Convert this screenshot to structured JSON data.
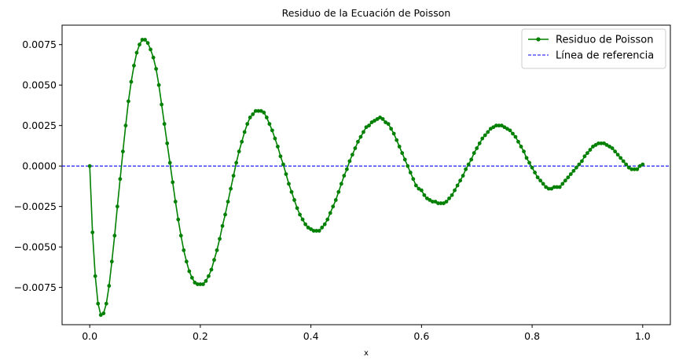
{
  "chart_data": {
    "type": "line",
    "title": "Residuo de la Ecuación de Poisson",
    "xlabel": "x",
    "ylabel": "",
    "xlim": [
      -0.05,
      1.05
    ],
    "ylim": [
      -0.0098,
      0.0087
    ],
    "x_ticks": [
      0.0,
      0.2,
      0.4,
      0.6,
      0.8,
      1.0
    ],
    "x_tick_labels": [
      "0.0",
      "0.2",
      "0.4",
      "0.6",
      "0.8",
      "1.0"
    ],
    "y_ticks": [
      -0.0075,
      -0.005,
      -0.0025,
      0.0,
      0.0025,
      0.005,
      0.0075
    ],
    "y_tick_labels": [
      "−0.0075",
      "−0.0050",
      "−0.0025",
      "0.0000",
      "0.0025",
      "0.0050",
      "0.0075"
    ],
    "grid": false,
    "legend_position": "top-right",
    "series": [
      {
        "name": "Residuo de Poisson",
        "color": "#008000",
        "style": "solid-with-dots",
        "points": [
          [
            0.0,
            0.0
          ],
          [
            0.005,
            -0.0041
          ],
          [
            0.01,
            -0.0068
          ],
          [
            0.015,
            -0.0085
          ],
          [
            0.02,
            -0.0092
          ],
          [
            0.025,
            -0.0091
          ],
          [
            0.03,
            -0.0085
          ],
          [
            0.035,
            -0.0074
          ],
          [
            0.04,
            -0.0059
          ],
          [
            0.045,
            -0.0043
          ],
          [
            0.05,
            -0.0025
          ],
          [
            0.055,
            -0.0008
          ],
          [
            0.06,
            0.0009
          ],
          [
            0.065,
            0.0025
          ],
          [
            0.07,
            0.004
          ],
          [
            0.075,
            0.0052
          ],
          [
            0.08,
            0.0062
          ],
          [
            0.085,
            0.007
          ],
          [
            0.09,
            0.0075
          ],
          [
            0.095,
            0.0078
          ],
          [
            0.1,
            0.0078
          ],
          [
            0.105,
            0.0076
          ],
          [
            0.11,
            0.0072
          ],
          [
            0.115,
            0.0067
          ],
          [
            0.12,
            0.006
          ],
          [
            0.125,
            0.005
          ],
          [
            0.13,
            0.0038
          ],
          [
            0.135,
            0.0026
          ],
          [
            0.14,
            0.0014
          ],
          [
            0.145,
            0.0002
          ],
          [
            0.15,
            -0.001
          ],
          [
            0.155,
            -0.0022
          ],
          [
            0.16,
            -0.0033
          ],
          [
            0.165,
            -0.0043
          ],
          [
            0.17,
            -0.0052
          ],
          [
            0.175,
            -0.0059
          ],
          [
            0.18,
            -0.0065
          ],
          [
            0.185,
            -0.0069
          ],
          [
            0.19,
            -0.0072
          ],
          [
            0.195,
            -0.0073
          ],
          [
            0.2,
            -0.0073
          ],
          [
            0.205,
            -0.0073
          ],
          [
            0.21,
            -0.0071
          ],
          [
            0.215,
            -0.0068
          ],
          [
            0.22,
            -0.0064
          ],
          [
            0.225,
            -0.0058
          ],
          [
            0.23,
            -0.0052
          ],
          [
            0.235,
            -0.0045
          ],
          [
            0.24,
            -0.0037
          ],
          [
            0.245,
            -0.003
          ],
          [
            0.25,
            -0.0022
          ],
          [
            0.255,
            -0.0014
          ],
          [
            0.26,
            -0.0006
          ],
          [
            0.265,
            0.0002
          ],
          [
            0.27,
            0.0009
          ],
          [
            0.275,
            0.0015
          ],
          [
            0.28,
            0.0021
          ],
          [
            0.285,
            0.0026
          ],
          [
            0.29,
            0.003
          ],
          [
            0.295,
            0.0032
          ],
          [
            0.3,
            0.0034
          ],
          [
            0.305,
            0.0034
          ],
          [
            0.31,
            0.0034
          ],
          [
            0.315,
            0.0033
          ],
          [
            0.32,
            0.003
          ],
          [
            0.325,
            0.0026
          ],
          [
            0.33,
            0.0022
          ],
          [
            0.335,
            0.0017
          ],
          [
            0.34,
            0.0012
          ],
          [
            0.345,
            0.0006
          ],
          [
            0.35,
            0.0001
          ],
          [
            0.355,
            -0.0005
          ],
          [
            0.36,
            -0.0011
          ],
          [
            0.365,
            -0.0016
          ],
          [
            0.37,
            -0.0021
          ],
          [
            0.375,
            -0.0026
          ],
          [
            0.38,
            -0.003
          ],
          [
            0.385,
            -0.0033
          ],
          [
            0.39,
            -0.0036
          ],
          [
            0.395,
            -0.0038
          ],
          [
            0.4,
            -0.0039
          ],
          [
            0.405,
            -0.004
          ],
          [
            0.41,
            -0.004
          ],
          [
            0.415,
            -0.004
          ],
          [
            0.42,
            -0.0038
          ],
          [
            0.425,
            -0.0036
          ],
          [
            0.43,
            -0.0033
          ],
          [
            0.435,
            -0.0029
          ],
          [
            0.44,
            -0.0025
          ],
          [
            0.445,
            -0.0021
          ],
          [
            0.45,
            -0.0016
          ],
          [
            0.455,
            -0.0011
          ],
          [
            0.46,
            -0.0006
          ],
          [
            0.465,
            -0.0002
          ],
          [
            0.47,
            0.0003
          ],
          [
            0.475,
            0.0007
          ],
          [
            0.48,
            0.0011
          ],
          [
            0.485,
            0.0015
          ],
          [
            0.49,
            0.0018
          ],
          [
            0.495,
            0.0021
          ],
          [
            0.5,
            0.0024
          ],
          [
            0.505,
            0.0025
          ],
          [
            0.51,
            0.0027
          ],
          [
            0.515,
            0.0028
          ],
          [
            0.52,
            0.0029
          ],
          [
            0.525,
            0.003
          ],
          [
            0.53,
            0.0029
          ],
          [
            0.535,
            0.0027
          ],
          [
            0.54,
            0.0026
          ],
          [
            0.545,
            0.0023
          ],
          [
            0.55,
            0.002
          ],
          [
            0.555,
            0.0016
          ],
          [
            0.56,
            0.0012
          ],
          [
            0.565,
            0.0008
          ],
          [
            0.57,
            0.0004
          ],
          [
            0.575,
            0.0
          ],
          [
            0.58,
            -0.0004
          ],
          [
            0.585,
            -0.0008
          ],
          [
            0.59,
            -0.0012
          ],
          [
            0.595,
            -0.0014
          ],
          [
            0.6,
            -0.0015
          ],
          [
            0.605,
            -0.0018
          ],
          [
            0.61,
            -0.002
          ],
          [
            0.615,
            -0.0021
          ],
          [
            0.62,
            -0.0022
          ],
          [
            0.625,
            -0.0022
          ],
          [
            0.63,
            -0.0023
          ],
          [
            0.635,
            -0.0023
          ],
          [
            0.64,
            -0.0023
          ],
          [
            0.645,
            -0.0022
          ],
          [
            0.65,
            -0.002
          ],
          [
            0.655,
            -0.0018
          ],
          [
            0.66,
            -0.0015
          ],
          [
            0.665,
            -0.0012
          ],
          [
            0.67,
            -0.0009
          ],
          [
            0.675,
            -0.0006
          ],
          [
            0.68,
            -0.0002
          ],
          [
            0.685,
            0.0001
          ],
          [
            0.69,
            0.0004
          ],
          [
            0.695,
            0.0008
          ],
          [
            0.7,
            0.0011
          ],
          [
            0.705,
            0.0014
          ],
          [
            0.71,
            0.0017
          ],
          [
            0.715,
            0.0019
          ],
          [
            0.72,
            0.0021
          ],
          [
            0.725,
            0.0023
          ],
          [
            0.73,
            0.0024
          ],
          [
            0.735,
            0.0025
          ],
          [
            0.74,
            0.0025
          ],
          [
            0.745,
            0.0025
          ],
          [
            0.75,
            0.0024
          ],
          [
            0.755,
            0.0023
          ],
          [
            0.76,
            0.0022
          ],
          [
            0.765,
            0.002
          ],
          [
            0.77,
            0.0018
          ],
          [
            0.775,
            0.0015
          ],
          [
            0.78,
            0.0012
          ],
          [
            0.785,
            0.0009
          ],
          [
            0.79,
            0.0005
          ],
          [
            0.795,
            0.0002
          ],
          [
            0.8,
            -0.0001
          ],
          [
            0.805,
            -0.0004
          ],
          [
            0.81,
            -0.0007
          ],
          [
            0.815,
            -0.0009
          ],
          [
            0.82,
            -0.0011
          ],
          [
            0.825,
            -0.0013
          ],
          [
            0.83,
            -0.0014
          ],
          [
            0.835,
            -0.0014
          ],
          [
            0.84,
            -0.0013
          ],
          [
            0.845,
            -0.0013
          ],
          [
            0.85,
            -0.0013
          ],
          [
            0.855,
            -0.0011
          ],
          [
            0.86,
            -0.0009
          ],
          [
            0.865,
            -0.0007
          ],
          [
            0.87,
            -0.0005
          ],
          [
            0.875,
            -0.0003
          ],
          [
            0.88,
            -0.0001
          ],
          [
            0.885,
            0.0001
          ],
          [
            0.89,
            0.0003
          ],
          [
            0.895,
            0.0006
          ],
          [
            0.9,
            0.0008
          ],
          [
            0.905,
            0.001
          ],
          [
            0.91,
            0.0012
          ],
          [
            0.915,
            0.0013
          ],
          [
            0.92,
            0.0014
          ],
          [
            0.925,
            0.0014
          ],
          [
            0.93,
            0.0014
          ],
          [
            0.935,
            0.0013
          ],
          [
            0.94,
            0.0012
          ],
          [
            0.945,
            0.0011
          ],
          [
            0.95,
            0.0009
          ],
          [
            0.955,
            0.0007
          ],
          [
            0.96,
            0.0005
          ],
          [
            0.965,
            0.0003
          ],
          [
            0.97,
            0.0001
          ],
          [
            0.975,
            -0.0001
          ],
          [
            0.98,
            -0.0002
          ],
          [
            0.985,
            -0.0002
          ],
          [
            0.99,
            -0.0002
          ],
          [
            0.995,
            0.0
          ],
          [
            1.0,
            0.0001
          ]
        ]
      },
      {
        "name": "Línea de referencia",
        "color": "#0000ff",
        "style": "dashed",
        "y": 0.0
      }
    ]
  }
}
